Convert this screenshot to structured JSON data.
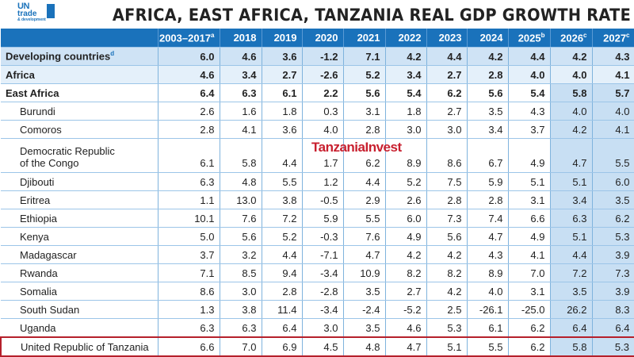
{
  "logo": {
    "line1": "UN",
    "line2": "trade",
    "line3": "& development"
  },
  "title": "AFRICA, EAST AFRICA, TANZANIA REAL GDP GROWTH RATE",
  "watermark": "TanzaniaInvest",
  "colors": {
    "header": "#1a72bb",
    "highlight_border": "#b5202b",
    "projection_shade": "#c8dff3"
  },
  "columns": [
    {
      "label": "2003–2017",
      "note": "a"
    },
    {
      "label": "2018",
      "note": ""
    },
    {
      "label": "2019",
      "note": ""
    },
    {
      "label": "2020",
      "note": ""
    },
    {
      "label": "2021",
      "note": ""
    },
    {
      "label": "2022",
      "note": ""
    },
    {
      "label": "2023",
      "note": ""
    },
    {
      "label": "2024",
      "note": ""
    },
    {
      "label": "2025",
      "note": "b"
    },
    {
      "label": "2026",
      "note": "c"
    },
    {
      "label": "2027",
      "note": "c"
    }
  ],
  "rows": [
    {
      "name": "Developing countries",
      "note": "d",
      "values": [
        "6.0",
        "4.6",
        "3.6",
        "-1.2",
        "7.1",
        "4.2",
        "4.4",
        "4.2",
        "4.4",
        "4.2",
        "4.3"
      ]
    },
    {
      "name": "Africa",
      "note": "",
      "values": [
        "4.6",
        "3.4",
        "2.7",
        "-2.6",
        "5.2",
        "3.4",
        "2.7",
        "2.8",
        "4.0",
        "4.0",
        "4.1"
      ]
    },
    {
      "name": "East Africa",
      "note": "",
      "values": [
        "6.4",
        "6.3",
        "6.1",
        "2.2",
        "5.6",
        "5.4",
        "6.2",
        "5.6",
        "5.4",
        "5.8",
        "5.7"
      ]
    },
    {
      "name": "Burundi",
      "note": "",
      "values": [
        "2.6",
        "1.6",
        "1.8",
        "0.3",
        "3.1",
        "1.8",
        "2.7",
        "3.5",
        "4.3",
        "4.0",
        "4.0"
      ]
    },
    {
      "name": "Comoros",
      "note": "",
      "values": [
        "2.8",
        "4.1",
        "3.6",
        "4.0",
        "2.8",
        "3.0",
        "3.0",
        "3.4",
        "3.7",
        "4.2",
        "4.1"
      ]
    },
    {
      "name": "Democratic Republic",
      "name2": "of the Congo",
      "note": "",
      "values": [
        "6.1",
        "5.8",
        "4.4",
        "1.7",
        "6.2",
        "8.9",
        "8.6",
        "6.7",
        "4.9",
        "4.7",
        "5.5"
      ]
    },
    {
      "name": "Djibouti",
      "note": "",
      "values": [
        "6.3",
        "4.8",
        "5.5",
        "1.2",
        "4.4",
        "5.2",
        "7.5",
        "5.9",
        "5.1",
        "5.1",
        "6.0"
      ]
    },
    {
      "name": "Eritrea",
      "note": "",
      "values": [
        "1.1",
        "13.0",
        "3.8",
        "-0.5",
        "2.9",
        "2.6",
        "2.8",
        "2.8",
        "3.1",
        "3.4",
        "3.5"
      ]
    },
    {
      "name": "Ethiopia",
      "note": "",
      "values": [
        "10.1",
        "7.6",
        "7.2",
        "5.9",
        "5.5",
        "6.0",
        "7.3",
        "7.4",
        "6.6",
        "6.3",
        "6.2"
      ]
    },
    {
      "name": "Kenya",
      "note": "",
      "values": [
        "5.0",
        "5.6",
        "5.2",
        "-0.3",
        "7.6",
        "4.9",
        "5.6",
        "4.7",
        "4.9",
        "5.1",
        "5.3"
      ]
    },
    {
      "name": "Madagascar",
      "note": "",
      "values": [
        "3.7",
        "3.2",
        "4.4",
        "-7.1",
        "4.7",
        "4.2",
        "4.2",
        "4.3",
        "4.1",
        "4.4",
        "3.9"
      ]
    },
    {
      "name": "Rwanda",
      "note": "",
      "values": [
        "7.1",
        "8.5",
        "9.4",
        "-3.4",
        "10.9",
        "8.2",
        "8.2",
        "8.9",
        "7.0",
        "7.2",
        "7.3"
      ]
    },
    {
      "name": "Somalia",
      "note": "",
      "values": [
        "8.6",
        "3.0",
        "2.8",
        "-2.8",
        "3.5",
        "2.7",
        "4.2",
        "4.0",
        "3.1",
        "3.5",
        "3.9"
      ]
    },
    {
      "name": "South Sudan",
      "note": "",
      "values": [
        "1.3",
        "3.8",
        "11.4",
        "-3.4",
        "-2.4",
        "-5.2",
        "2.5",
        "-26.1",
        "-25.0",
        "26.2",
        "8.3"
      ]
    },
    {
      "name": "Uganda",
      "note": "",
      "values": [
        "6.3",
        "6.3",
        "6.4",
        "3.0",
        "3.5",
        "4.6",
        "5.3",
        "6.1",
        "6.2",
        "6.4",
        "6.4"
      ]
    },
    {
      "name": "United Republic of Tanzania",
      "note": "",
      "values": [
        "6.6",
        "7.0",
        "6.9",
        "4.5",
        "4.8",
        "4.7",
        "5.1",
        "5.5",
        "6.2",
        "5.8",
        "5.3"
      ]
    }
  ]
}
